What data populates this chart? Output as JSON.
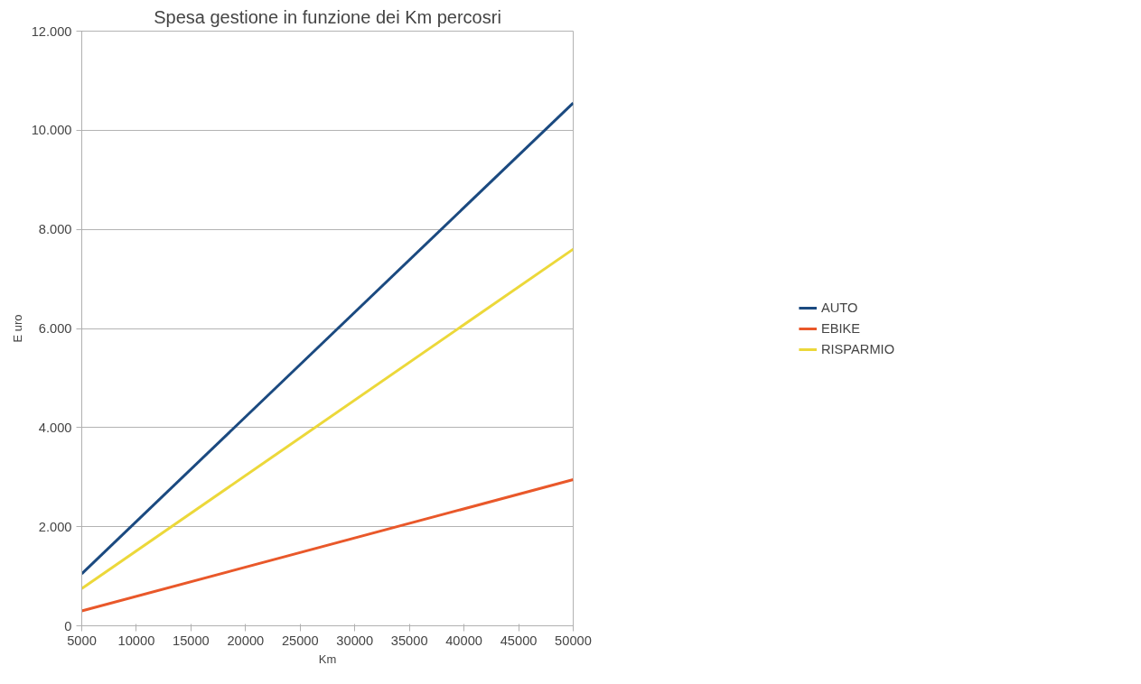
{
  "chart_data": {
    "type": "line",
    "title": "Spesa gestione in funzione dei Km percosri",
    "xlabel": "Km",
    "ylabel": "E uro",
    "x": [
      5000,
      50000
    ],
    "series": [
      {
        "name": "AUTO",
        "color": "#1b4a80",
        "values": [
          1050,
          10550
        ]
      },
      {
        "name": "EBIKE",
        "color": "#e9582a",
        "values": [
          300,
          2950
        ]
      },
      {
        "name": "RISPARMIO",
        "color": "#ecd83a",
        "values": [
          750,
          7600
        ]
      }
    ],
    "xlim": [
      5000,
      50000
    ],
    "xticks": [
      5000,
      10000,
      15000,
      20000,
      25000,
      30000,
      35000,
      40000,
      45000,
      50000
    ],
    "ylim": [
      0,
      12000
    ],
    "yticks": [
      0,
      {
        "value": 2000,
        "label": "2.000"
      },
      {
        "value": 4000,
        "label": "4.000"
      },
      {
        "value": 6000,
        "label": "6.000"
      },
      {
        "value": 8000,
        "label": "8.000"
      },
      {
        "value": 10000,
        "label": "10.000"
      },
      {
        "value": 12000,
        "label": "12.000"
      }
    ],
    "grid": "y",
    "legend": "right",
    "marker": "none",
    "line_style": "solid"
  }
}
